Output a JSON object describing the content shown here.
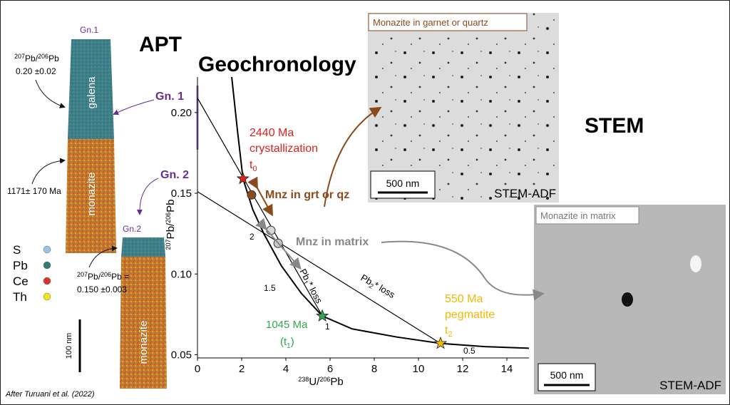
{
  "title": "Geochronology",
  "credit": "After Turuani et al. (2022)",
  "apt": {
    "title": "APT",
    "gn1": "Gn.1",
    "gn2": "Gn.2",
    "galena": "galena",
    "monazite1": "monazite",
    "monazite2": "monazite",
    "ratio1": [
      "207",
      "Pb/",
      "206",
      "Pb",
      "0.20 ±0.02"
    ],
    "age1": "1171± 170 Ma",
    "ratio2": [
      "207",
      "Pb/",
      "206",
      "Pb =",
      "0.150 ±0.003"
    ],
    "scale": "100 nm",
    "legend": [
      {
        "name": "S",
        "color": "#9cc3e0"
      },
      {
        "name": "Pb",
        "color": "#2e7b78"
      },
      {
        "name": "Ce",
        "color": "#d9342b"
      },
      {
        "name": "Th",
        "color": "#f2e21a"
      }
    ]
  },
  "stem": {
    "title": "STEM",
    "panel1": {
      "label": "Monazite in garnet or quartz",
      "scale": "500 nm",
      "mode": "STEM-ADF"
    },
    "panel2": {
      "label": "Monazite in matrix",
      "scale": "500 nm",
      "mode": "STEM-ADF"
    }
  },
  "chart_data": {
    "type": "scatter",
    "x_label": [
      "238",
      "U/",
      "206",
      "Pb"
    ],
    "y_label": [
      "207",
      "Pb/",
      "206",
      "Pb"
    ],
    "xlim": [
      0,
      15
    ],
    "xticks": [
      0,
      2,
      4,
      6,
      8,
      10,
      12,
      14
    ],
    "ylim": [
      0.048,
      0.222
    ],
    "yticks": [
      0.05,
      {
        "value": 0.1,
        "label": "0.10"
      },
      0.15,
      {
        "value": 0.2,
        "label": "0.20"
      }
    ],
    "concordia": {
      "x": [
        1.55,
        1.8,
        2.06,
        2.5,
        3.0,
        3.8,
        4.7,
        5.65,
        7,
        9,
        11.0,
        13,
        15
      ],
      "y": [
        0.222,
        0.19,
        0.159,
        0.14,
        0.125,
        0.105,
        0.088,
        0.074,
        0.066,
        0.061,
        0.057,
        0.055,
        0.054
      ],
      "color": "#000000",
      "labels": [
        "2",
        "1.5",
        "1",
        "0.5"
      ]
    },
    "discordia": [
      {
        "x": [
          0,
          5.65
        ],
        "y": [
          0.209,
          0.074
        ]
      },
      {
        "x": [
          0,
          11.0
        ],
        "y": [
          0.151,
          0.057
        ]
      }
    ],
    "points": {
      "x": [
        2.45,
        3.32,
        3.65
      ],
      "y": [
        0.149,
        0.127,
        0.119
      ],
      "colors": [
        "#8b4a1c",
        "#d8d8d8",
        "#c8c8c8"
      ]
    },
    "stars": {
      "x": [
        2.06,
        5.65,
        11.0
      ],
      "y": [
        0.159,
        0.074,
        0.057
      ],
      "colors": [
        "#e0201b",
        "#2fa84f",
        "#f5b800"
      ]
    },
    "annotations": {
      "gn1": "Gn. 1",
      "gn2": "Gn. 2",
      "t0": [
        "2440 Ma",
        "crystallization",
        "t",
        "0"
      ],
      "grt": "Mnz in grt or qz",
      "matrix": "Mnz in matrix",
      "pb1": [
        "Pb",
        "1",
        "* loss"
      ],
      "pb2": [
        "Pb",
        "2",
        "* loss"
      ],
      "t1": [
        "1045 Ma",
        "(t",
        "1",
        ")"
      ],
      "t2": [
        "550 Ma",
        "pegmatite",
        "t",
        "2"
      ]
    }
  }
}
